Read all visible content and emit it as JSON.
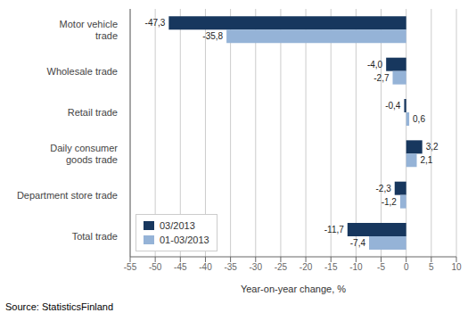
{
  "chart_data": {
    "type": "bar",
    "orientation": "horizontal",
    "categories": [
      "Motor vehicle\ntrade",
      "Wholesale trade",
      "Retail trade",
      "Daily consumer\ngoods trade",
      "Department store trade",
      "Total trade"
    ],
    "series": [
      {
        "name": "03/2013",
        "color": "#17375E",
        "values": [
          -47.3,
          -4.0,
          -0.4,
          3.2,
          -2.3,
          -11.7
        ],
        "value_labels": [
          "-47,3",
          "-4,0",
          "-0,4",
          "3,2",
          "-2,3",
          "-11,7"
        ]
      },
      {
        "name": "01-03/2013",
        "color": "#95B3D7",
        "values": [
          -35.8,
          -2.7,
          0.6,
          2.1,
          -1.2,
          -7.4
        ],
        "value_labels": [
          "-35,8",
          "-2,7",
          "0,6",
          "2,1",
          "-1,2",
          "-7,4"
        ]
      }
    ],
    "xlabel": "Year-on-year change, %",
    "xlim": [
      -55,
      10
    ],
    "xticks": [
      -55,
      -50,
      -45,
      -40,
      -35,
      -30,
      -25,
      -20,
      -15,
      -10,
      -5,
      0,
      5,
      10
    ],
    "grid": true,
    "legend": "lower left",
    "data_labels": true,
    "annotations": [
      "Source: StatisticsFinland"
    ]
  }
}
